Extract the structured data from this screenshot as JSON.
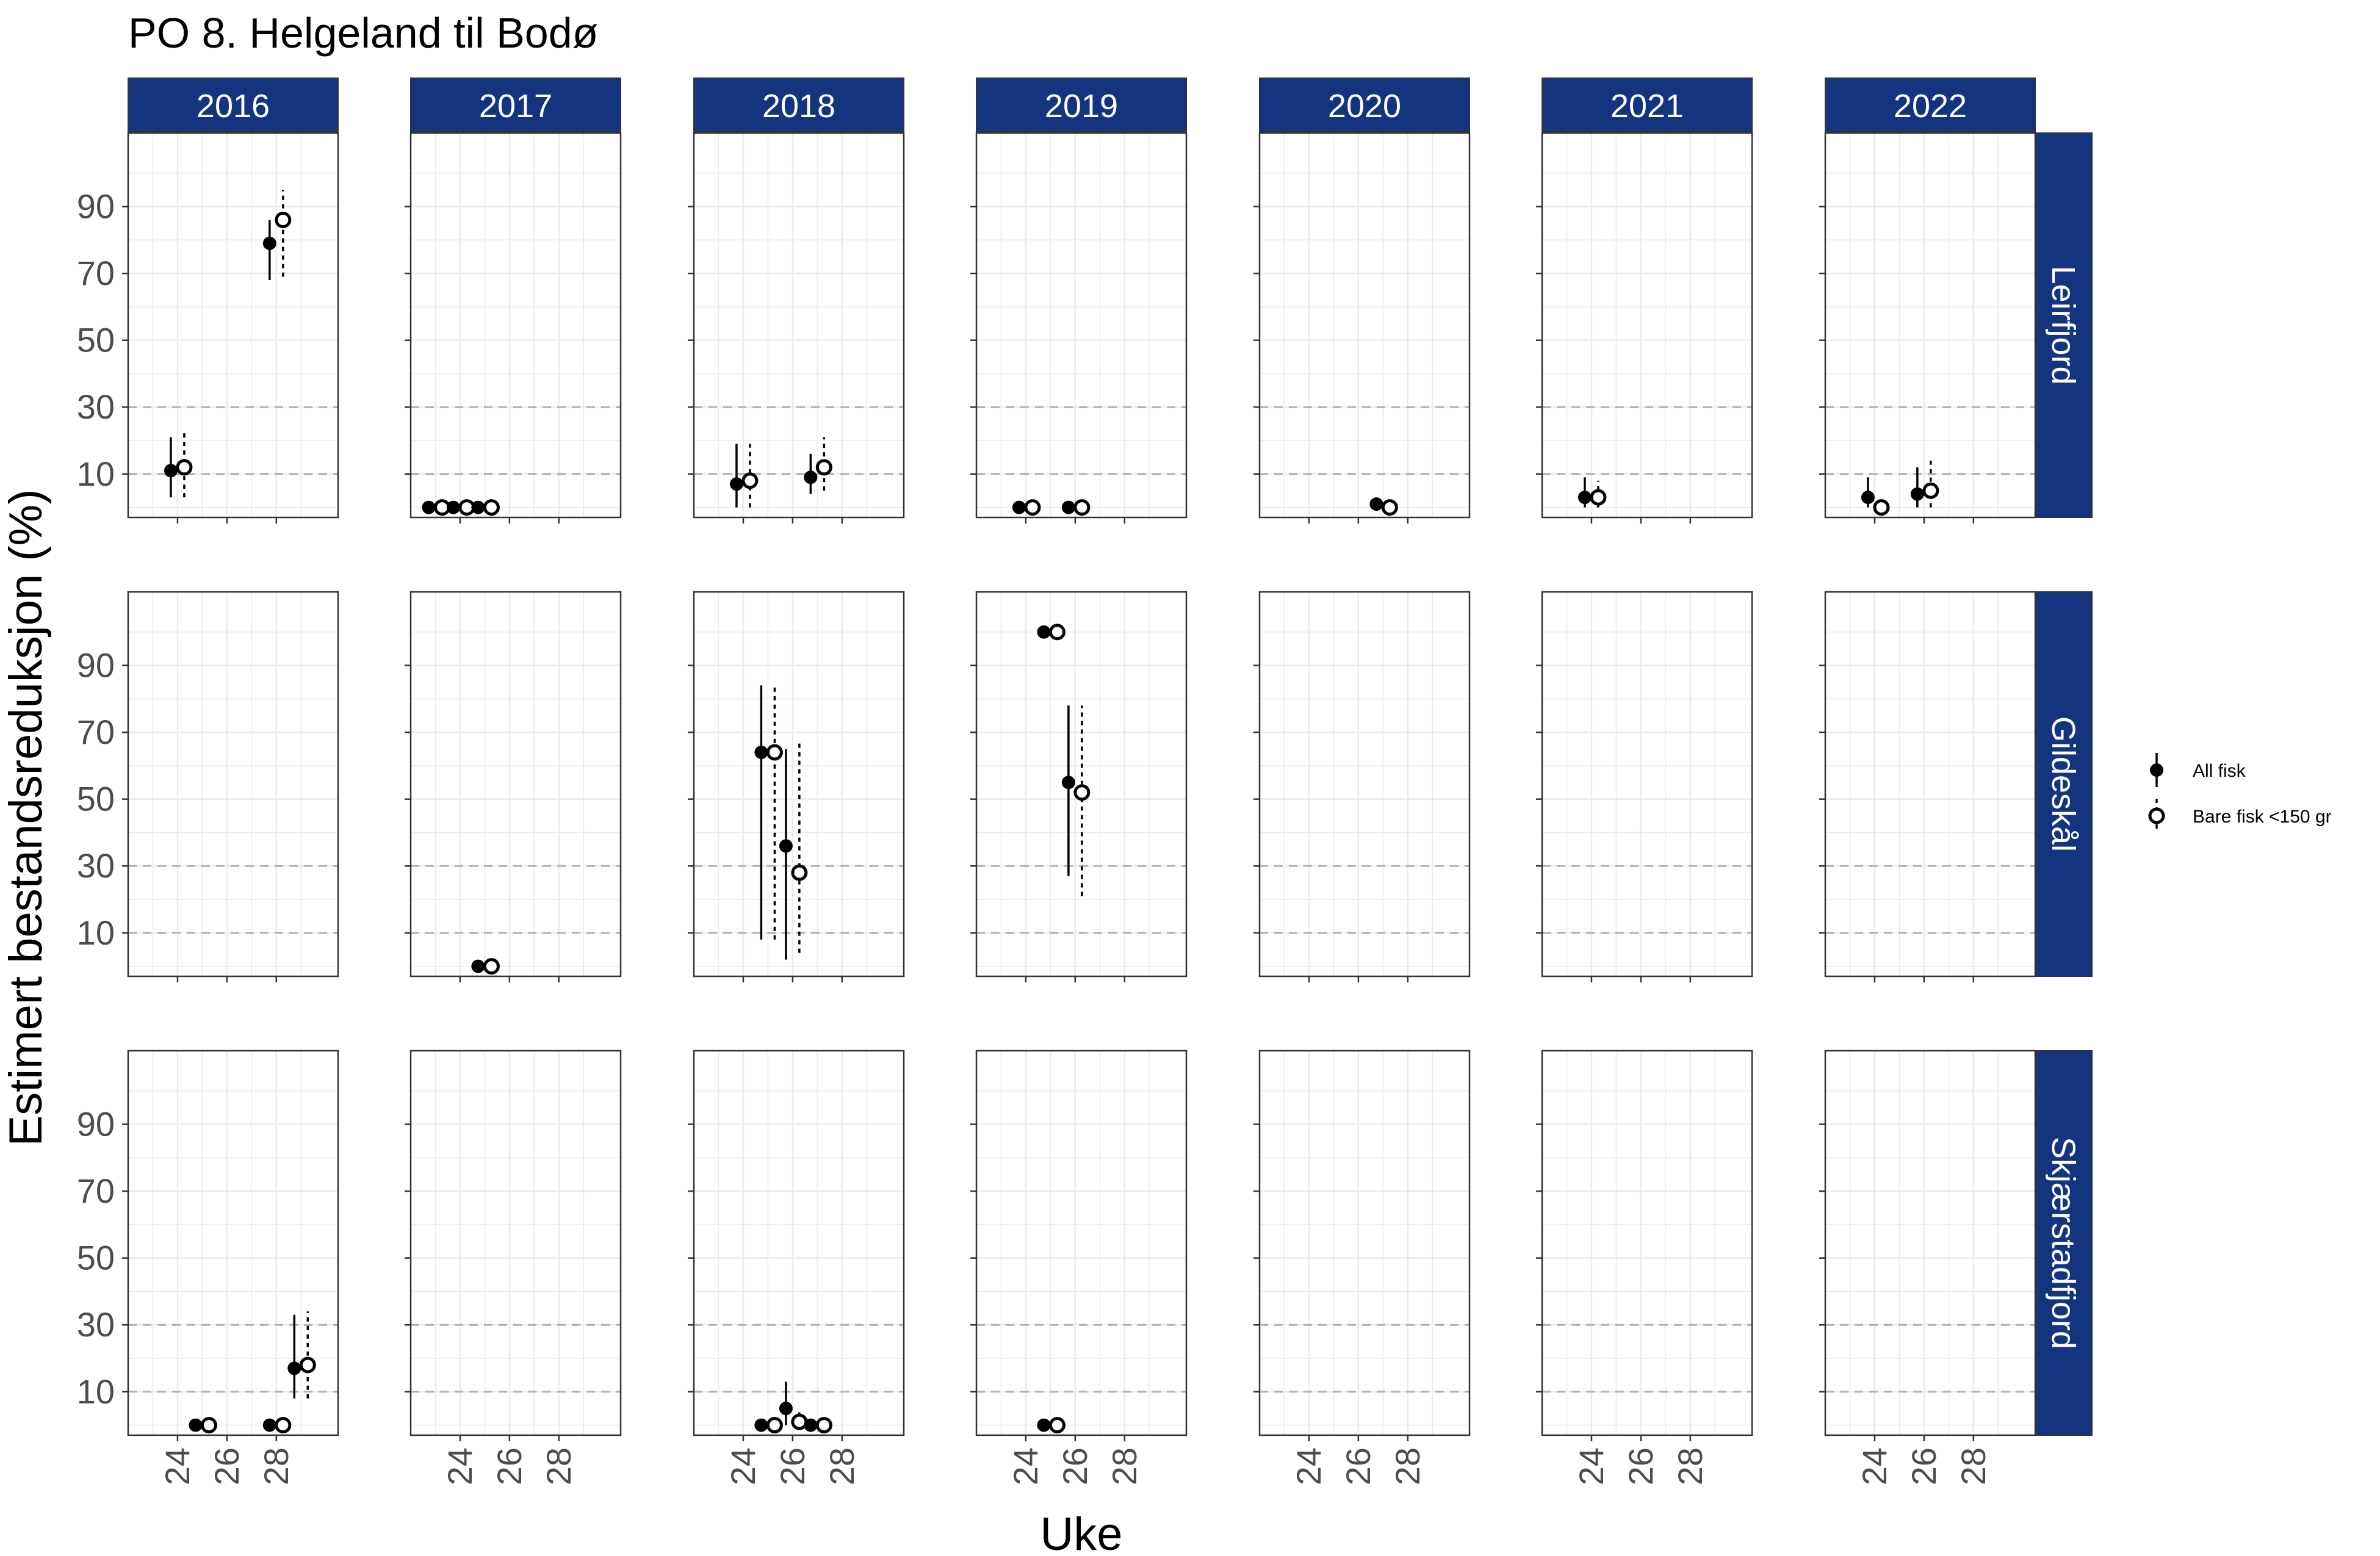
{
  "title": "PO 8. Helgeland til Bodø",
  "chart_data": {
    "type": "scatter",
    "title": "PO 8. Helgeland til Bodø",
    "xlabel": "Uke",
    "ylabel": "Estimert bestandsreduksjon (%)",
    "xlim": [
      22,
      30.5
    ],
    "ylim": [
      -3,
      112
    ],
    "x_ticks": [
      24,
      26,
      28
    ],
    "x_tick_labels": [
      "24",
      "26",
      "28"
    ],
    "y_ticks": [
      10,
      30,
      50,
      70,
      90
    ],
    "y_tick_labels": [
      "10",
      "30",
      "50",
      "70",
      "90"
    ],
    "reference_lines": [
      10,
      30
    ],
    "grid": true,
    "legend_position": "right",
    "columns": [
      "2016",
      "2017",
      "2018",
      "2019",
      "2020",
      "2021",
      "2022"
    ],
    "rows": [
      "Leirfjord",
      "Gildeskål",
      "Skjærstadfjord"
    ],
    "series": [
      {
        "name": "All fisk",
        "marker": "filled-circle",
        "line": "solid"
      },
      {
        "name": "Bare fisk <150 gr",
        "marker": "open-circle",
        "line": "dotted"
      }
    ],
    "points": [
      {
        "row": "Leirfjord",
        "col": "2016",
        "series": "All fisk",
        "x": 24,
        "y": 11,
        "lo": 3,
        "hi": 21
      },
      {
        "row": "Leirfjord",
        "col": "2016",
        "series": "Bare fisk <150 gr",
        "x": 24,
        "y": 12,
        "lo": 3,
        "hi": 23
      },
      {
        "row": "Leirfjord",
        "col": "2016",
        "series": "All fisk",
        "x": 28,
        "y": 79,
        "lo": 68,
        "hi": 86
      },
      {
        "row": "Leirfjord",
        "col": "2016",
        "series": "Bare fisk <150 gr",
        "x": 28,
        "y": 86,
        "lo": 69,
        "hi": 95
      },
      {
        "row": "Leirfjord",
        "col": "2017",
        "series": "All fisk",
        "x": 23,
        "y": 0
      },
      {
        "row": "Leirfjord",
        "col": "2017",
        "series": "Bare fisk <150 gr",
        "x": 23,
        "y": 0
      },
      {
        "row": "Leirfjord",
        "col": "2017",
        "series": "All fisk",
        "x": 24,
        "y": 0
      },
      {
        "row": "Leirfjord",
        "col": "2017",
        "series": "Bare fisk <150 gr",
        "x": 24,
        "y": 0
      },
      {
        "row": "Leirfjord",
        "col": "2017",
        "series": "All fisk",
        "x": 25,
        "y": 0
      },
      {
        "row": "Leirfjord",
        "col": "2017",
        "series": "Bare fisk <150 gr",
        "x": 25,
        "y": 0
      },
      {
        "row": "Leirfjord",
        "col": "2018",
        "series": "All fisk",
        "x": 24,
        "y": 7,
        "lo": 0,
        "hi": 19
      },
      {
        "row": "Leirfjord",
        "col": "2018",
        "series": "Bare fisk <150 gr",
        "x": 24,
        "y": 8,
        "lo": 0,
        "hi": 19
      },
      {
        "row": "Leirfjord",
        "col": "2018",
        "series": "All fisk",
        "x": 27,
        "y": 9,
        "lo": 4,
        "hi": 16
      },
      {
        "row": "Leirfjord",
        "col": "2018",
        "series": "Bare fisk <150 gr",
        "x": 27,
        "y": 12,
        "lo": 5,
        "hi": 21
      },
      {
        "row": "Leirfjord",
        "col": "2019",
        "series": "All fisk",
        "x": 24,
        "y": 0
      },
      {
        "row": "Leirfjord",
        "col": "2019",
        "series": "Bare fisk <150 gr",
        "x": 24,
        "y": 0
      },
      {
        "row": "Leirfjord",
        "col": "2019",
        "series": "All fisk",
        "x": 26,
        "y": 0
      },
      {
        "row": "Leirfjord",
        "col": "2019",
        "series": "Bare fisk <150 gr",
        "x": 26,
        "y": 0
      },
      {
        "row": "Leirfjord",
        "col": "2020",
        "series": "All fisk",
        "x": 27,
        "y": 1
      },
      {
        "row": "Leirfjord",
        "col": "2020",
        "series": "Bare fisk <150 gr",
        "x": 27,
        "y": 0
      },
      {
        "row": "Leirfjord",
        "col": "2021",
        "series": "All fisk",
        "x": 24,
        "y": 3,
        "lo": 0,
        "hi": 9
      },
      {
        "row": "Leirfjord",
        "col": "2021",
        "series": "Bare fisk <150 gr",
        "x": 24,
        "y": 3,
        "lo": 0,
        "hi": 8
      },
      {
        "row": "Leirfjord",
        "col": "2022",
        "series": "All fisk",
        "x": 24,
        "y": 3,
        "lo": 0,
        "hi": 9
      },
      {
        "row": "Leirfjord",
        "col": "2022",
        "series": "Bare fisk <150 gr",
        "x": 24,
        "y": 0
      },
      {
        "row": "Leirfjord",
        "col": "2022",
        "series": "All fisk",
        "x": 26,
        "y": 4,
        "lo": 0,
        "hi": 12
      },
      {
        "row": "Leirfjord",
        "col": "2022",
        "series": "Bare fisk <150 gr",
        "x": 26,
        "y": 5,
        "lo": 0,
        "hi": 14
      },
      {
        "row": "Gildeskål",
        "col": "2017",
        "series": "All fisk",
        "x": 25,
        "y": 0
      },
      {
        "row": "Gildeskål",
        "col": "2017",
        "series": "Bare fisk <150 gr",
        "x": 25,
        "y": 0
      },
      {
        "row": "Gildeskål",
        "col": "2018",
        "series": "All fisk",
        "x": 25,
        "y": 64,
        "lo": 8,
        "hi": 84
      },
      {
        "row": "Gildeskål",
        "col": "2018",
        "series": "Bare fisk <150 gr",
        "x": 25,
        "y": 64,
        "lo": 8,
        "hi": 84
      },
      {
        "row": "Gildeskål",
        "col": "2018",
        "series": "All fisk",
        "x": 26,
        "y": 36,
        "lo": 2,
        "hi": 65
      },
      {
        "row": "Gildeskål",
        "col": "2018",
        "series": "Bare fisk <150 gr",
        "x": 26,
        "y": 28,
        "lo": 4,
        "hi": 67
      },
      {
        "row": "Gildeskål",
        "col": "2019",
        "series": "All fisk",
        "x": 25,
        "y": 100
      },
      {
        "row": "Gildeskål",
        "col": "2019",
        "series": "Bare fisk <150 gr",
        "x": 25,
        "y": 100
      },
      {
        "row": "Gildeskål",
        "col": "2019",
        "series": "All fisk",
        "x": 26,
        "y": 55,
        "lo": 27,
        "hi": 78
      },
      {
        "row": "Gildeskål",
        "col": "2019",
        "series": "Bare fisk <150 gr",
        "x": 26,
        "y": 52,
        "lo": 21,
        "hi": 78
      },
      {
        "row": "Skjærstadfjord",
        "col": "2016",
        "series": "All fisk",
        "x": 25,
        "y": 0
      },
      {
        "row": "Skjærstadfjord",
        "col": "2016",
        "series": "Bare fisk <150 gr",
        "x": 25,
        "y": 0
      },
      {
        "row": "Skjærstadfjord",
        "col": "2016",
        "series": "All fisk",
        "x": 28,
        "y": 0
      },
      {
        "row": "Skjærstadfjord",
        "col": "2016",
        "series": "Bare fisk <150 gr",
        "x": 28,
        "y": 0
      },
      {
        "row": "Skjærstadfjord",
        "col": "2016",
        "series": "All fisk",
        "x": 29,
        "y": 17,
        "lo": 8,
        "hi": 33
      },
      {
        "row": "Skjærstadfjord",
        "col": "2016",
        "series": "Bare fisk <150 gr",
        "x": 29,
        "y": 18,
        "lo": 8,
        "hi": 34
      },
      {
        "row": "Skjærstadfjord",
        "col": "2018",
        "series": "All fisk",
        "x": 25,
        "y": 0
      },
      {
        "row": "Skjærstadfjord",
        "col": "2018",
        "series": "Bare fisk <150 gr",
        "x": 25,
        "y": 0
      },
      {
        "row": "Skjærstadfjord",
        "col": "2018",
        "series": "All fisk",
        "x": 26,
        "y": 5,
        "lo": 0,
        "hi": 13
      },
      {
        "row": "Skjærstadfjord",
        "col": "2018",
        "series": "Bare fisk <150 gr",
        "x": 26,
        "y": 1,
        "lo": 0,
        "hi": 5
      },
      {
        "row": "Skjærstadfjord",
        "col": "2018",
        "series": "All fisk",
        "x": 27,
        "y": 0
      },
      {
        "row": "Skjærstadfjord",
        "col": "2018",
        "series": "Bare fisk <150 gr",
        "x": 27,
        "y": 0
      },
      {
        "row": "Skjærstadfjord",
        "col": "2019",
        "series": "All fisk",
        "x": 25,
        "y": 0
      },
      {
        "row": "Skjærstadfjord",
        "col": "2019",
        "series": "Bare fisk <150 gr",
        "x": 25,
        "y": 0
      }
    ]
  },
  "colors": {
    "strip": "#14347f",
    "strip_text": "#ffffff",
    "panel_border": "#333333",
    "grid": "#ebebeb",
    "reference_line": "#b0b0b0",
    "point": "#000000",
    "tick_label": "#4d4d4d"
  }
}
